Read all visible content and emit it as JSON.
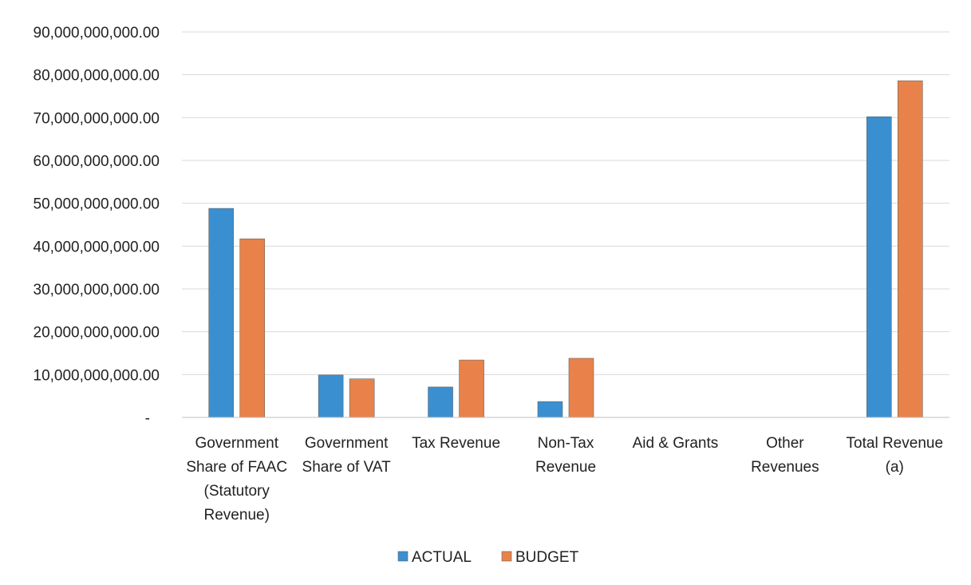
{
  "chart_data": {
    "type": "bar",
    "categories": [
      [
        "Government",
        "Share of FAAC",
        "(Statutory",
        "Revenue)"
      ],
      [
        "Government",
        "Share of VAT"
      ],
      [
        "Tax Revenue"
      ],
      [
        "Non-Tax",
        "Revenue"
      ],
      [
        "Aid & Grants"
      ],
      [
        "Other",
        "Revenues"
      ],
      [
        "Total Revenue",
        "(a)"
      ]
    ],
    "series": [
      {
        "name": "ACTUAL",
        "color": "#3a8fd0",
        "values": [
          48800000000,
          9900000000,
          7100000000,
          3700000000,
          0,
          0,
          70200000000
        ]
      },
      {
        "name": "BUDGET",
        "color": "#e8824a",
        "values": [
          41700000000,
          9000000000,
          13400000000,
          13800000000,
          0,
          0,
          78600000000
        ]
      }
    ],
    "ylim": [
      0,
      90000000000
    ],
    "yticks": [
      {
        "value": 0,
        "label": "-"
      },
      {
        "value": 10000000000,
        "label": "10,000,000,000.00"
      },
      {
        "value": 20000000000,
        "label": "20,000,000,000.00"
      },
      {
        "value": 30000000000,
        "label": "30,000,000,000.00"
      },
      {
        "value": 40000000000,
        "label": "40,000,000,000.00"
      },
      {
        "value": 50000000000,
        "label": "50,000,000,000.00"
      },
      {
        "value": 60000000000,
        "label": "60,000,000,000.00"
      },
      {
        "value": 70000000000,
        "label": "70,000,000,000.00"
      },
      {
        "value": 80000000000,
        "label": "80,000,000,000.00"
      },
      {
        "value": 90000000000,
        "label": "90,000,000,000.00"
      }
    ],
    "grid": true,
    "legend_position": "bottom"
  }
}
